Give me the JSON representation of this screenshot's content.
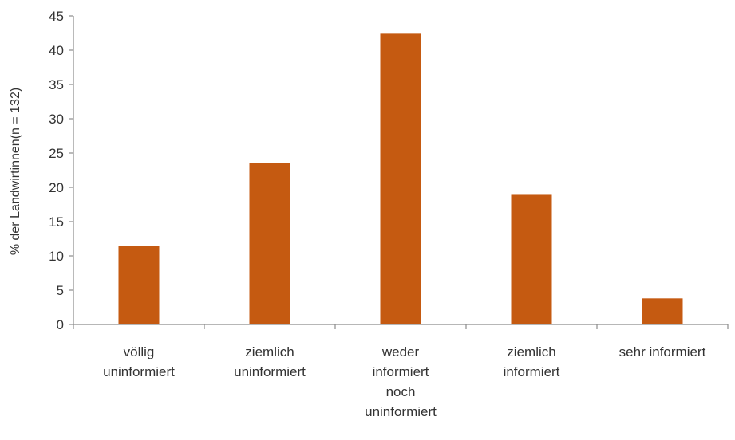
{
  "chart_data": {
    "type": "bar",
    "title": "",
    "ylabel": "% der Landwirtinnen(n = 132)",
    "xlabel": "",
    "ylim": [
      0,
      45
    ],
    "yticks": [
      0,
      5,
      10,
      15,
      20,
      25,
      30,
      35,
      40,
      45
    ],
    "grid": false,
    "legend": "none",
    "bar_color": "#c55a11",
    "categories": [
      [
        "völlig",
        "uninformiert"
      ],
      [
        "ziemlich",
        "uninformiert"
      ],
      [
        "weder",
        "informiert",
        "noch",
        "uninformiert"
      ],
      [
        "ziemlich",
        "informiert"
      ],
      [
        "sehr informiert"
      ]
    ],
    "values": [
      11.4,
      23.5,
      42.4,
      18.9,
      3.8
    ]
  }
}
